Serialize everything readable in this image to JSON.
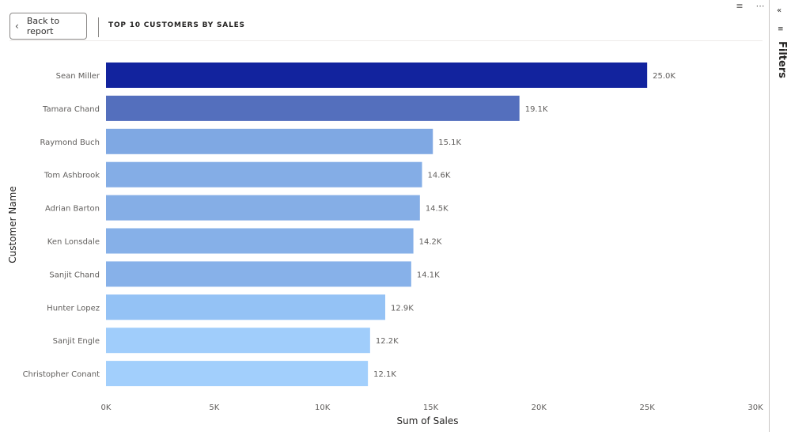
{
  "header": {
    "back_label": "Back to report",
    "title": "TOP 10 CUSTOMERS BY SALES"
  },
  "icons": {
    "top": [
      "filter-icon",
      "more-options-icon"
    ],
    "filters_collapse": "double-chevron-left-icon",
    "filters_funnel": "filter-icon"
  },
  "filters_pane": {
    "label": "Filters"
  },
  "chart_data": {
    "type": "bar",
    "orientation": "horizontal",
    "title": "TOP 10 CUSTOMERS BY SALES",
    "xlabel": "Sum of Sales",
    "ylabel": "Customer Name",
    "xlim": [
      0,
      30000
    ],
    "xticks": [
      {
        "value": 0,
        "label": "0K"
      },
      {
        "value": 5000,
        "label": "5K"
      },
      {
        "value": 10000,
        "label": "10K"
      },
      {
        "value": 15000,
        "label": "15K"
      },
      {
        "value": 20000,
        "label": "20K"
      },
      {
        "value": 25000,
        "label": "25K"
      },
      {
        "value": 30000,
        "label": "30K"
      }
    ],
    "grid": false,
    "categories": [
      "Sean Miller",
      "Tamara Chand",
      "Raymond Buch",
      "Tom Ashbrook",
      "Adrian Barton",
      "Ken Lonsdale",
      "Sanjit Chand",
      "Hunter Lopez",
      "Sanjit Engle",
      "Christopher Conant"
    ],
    "values": [
      25000,
      19100,
      15100,
      14600,
      14500,
      14200,
      14100,
      12900,
      12200,
      12100
    ],
    "data_labels": [
      "25.0K",
      "19.1K",
      "15.1K",
      "14.6K",
      "14.5K",
      "14.2K",
      "14.1K",
      "12.9K",
      "12.2K",
      "12.1K"
    ],
    "colors": [
      "#12239e",
      "#546fbd",
      "#7fa8e3",
      "#84ade6",
      "#85aee6",
      "#86b0e8",
      "#87b1e9",
      "#94c2f5",
      "#a0cdfb",
      "#a2cffc"
    ]
  }
}
